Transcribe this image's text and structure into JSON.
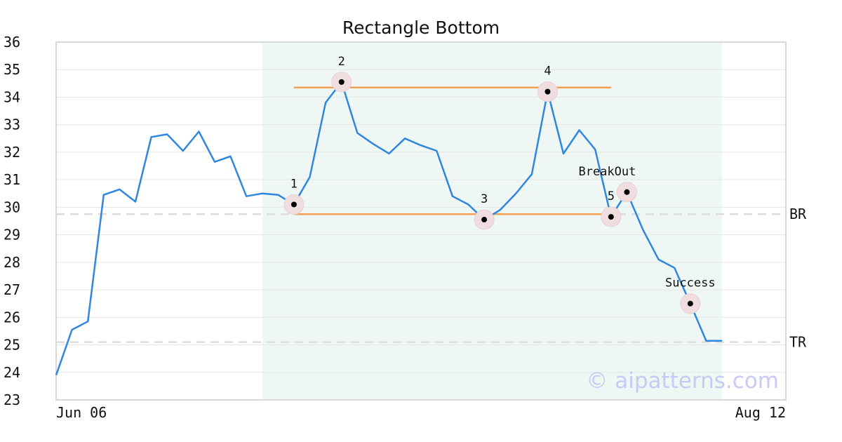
{
  "chart_data": {
    "type": "line",
    "title": "Rectangle Bottom",
    "xlabel": "",
    "ylabel": "",
    "ylim": [
      23,
      36
    ],
    "yticks": [
      23,
      24,
      25,
      26,
      27,
      28,
      29,
      30,
      31,
      32,
      33,
      34,
      35,
      36
    ],
    "x_tick_labels": [
      "Jun 06",
      "Aug 12"
    ],
    "grid": true,
    "series": [
      {
        "color": "#2f86e0",
        "values": [
          23.9,
          25.55,
          25.85,
          30.45,
          30.65,
          30.2,
          32.55,
          32.65,
          32.05,
          32.75,
          31.65,
          31.85,
          30.4,
          30.5,
          30.45,
          30.1,
          31.1,
          33.8,
          34.55,
          32.7,
          32.3,
          31.95,
          32.5,
          32.25,
          32.05,
          30.4,
          30.1,
          29.55,
          29.9,
          30.5,
          31.2,
          34.2,
          31.95,
          32.8,
          32.1,
          29.65,
          30.55,
          29.2,
          28.1,
          27.8,
          26.5,
          25.15,
          25.15
        ]
      }
    ],
    "pattern_region": {
      "start_index": 13,
      "end_index": 42,
      "color": "#eef7f3"
    },
    "resistance_line": {
      "y": 34.35,
      "start_index": 15,
      "end_index": 35,
      "color": "#f5a050"
    },
    "support_line": {
      "y": 29.75,
      "start_index": 15,
      "end_index": 35,
      "color": "#f5a050"
    },
    "reference_lines": [
      {
        "label": "BR",
        "y": 29.75
      },
      {
        "label": "TR",
        "y": 25.1
      }
    ],
    "marked_points": [
      {
        "label": "1",
        "index": 15,
        "y": 30.1
      },
      {
        "label": "2",
        "index": 18,
        "y": 34.55
      },
      {
        "label": "3",
        "index": 27,
        "y": 29.55
      },
      {
        "label": "4",
        "index": 31,
        "y": 34.2
      },
      {
        "label": "5",
        "index": 35,
        "y": 29.65
      },
      {
        "label": "BreakOut",
        "index": 36,
        "y": 30.55
      },
      {
        "label": "Success",
        "index": 40,
        "y": 26.5
      }
    ]
  },
  "watermark": "© aipatterns.com"
}
